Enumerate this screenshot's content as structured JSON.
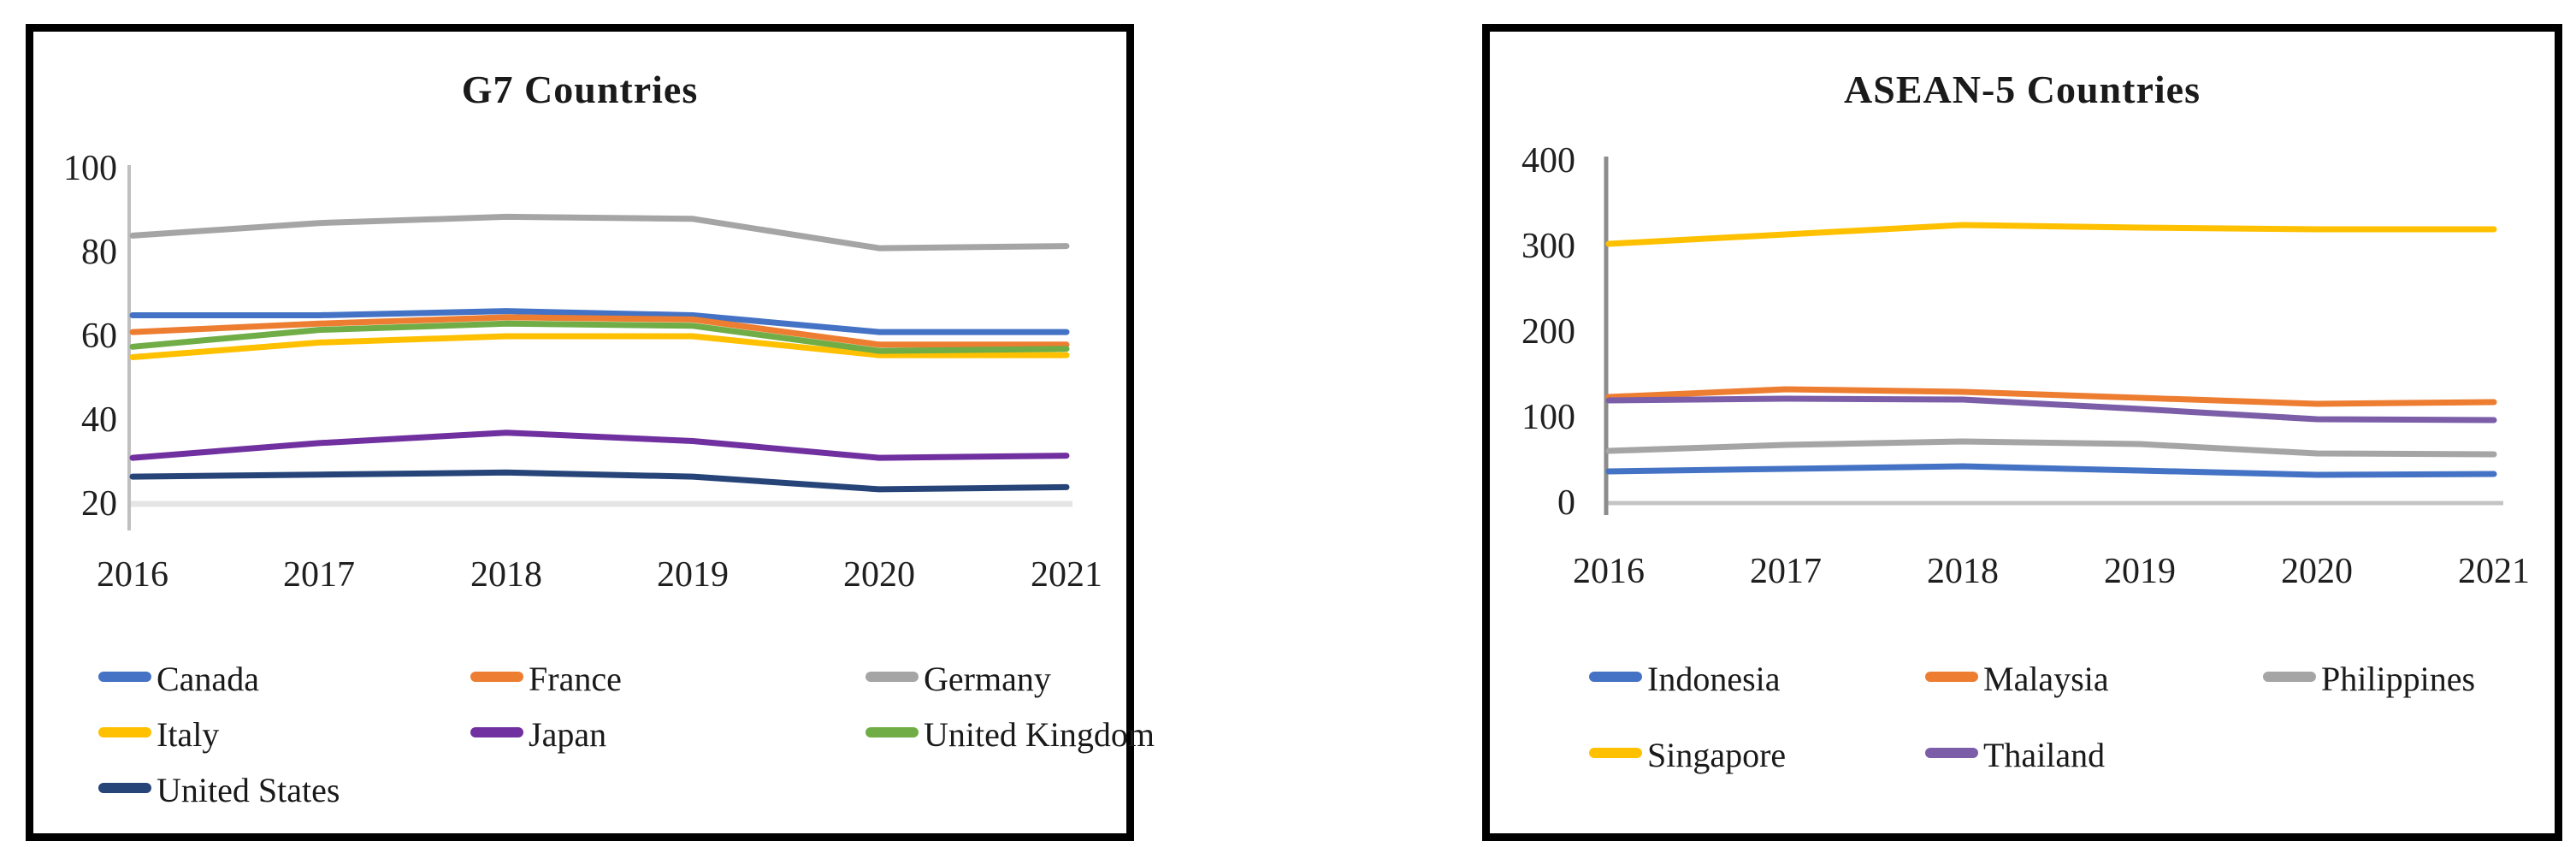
{
  "figure": {
    "background": "#ffffff",
    "panel_border_color": "#000000",
    "text_color": "#1a1a1a"
  },
  "chart_data": [
    {
      "type": "line",
      "title": "G7 Countries",
      "xlabel": "",
      "ylabel": "",
      "categories": [
        "2016",
        "2017",
        "2018",
        "2019",
        "2020",
        "2021"
      ],
      "y_axis": {
        "min": 20,
        "max": 100,
        "ticks": [
          100,
          80,
          60,
          40,
          20
        ]
      },
      "grid": false,
      "legend_position": "bottom",
      "series": [
        {
          "name": "Canada",
          "color": "#4472C4",
          "values": [
            65,
            65,
            66,
            65,
            61,
            61
          ]
        },
        {
          "name": "France",
          "color": "#ED7D31",
          "values": [
            61,
            63,
            64.5,
            64,
            58,
            58
          ]
        },
        {
          "name": "Germany",
          "color": "#A5A5A5",
          "values": [
            84,
            87,
            88.5,
            88,
            81,
            81.5
          ]
        },
        {
          "name": "Italy",
          "color": "#FFC000",
          "values": [
            55,
            58.5,
            60,
            60,
            55.5,
            55.5
          ]
        },
        {
          "name": "Japan",
          "color": "#7030A0",
          "values": [
            31,
            34.5,
            37,
            35,
            31,
            31.5
          ]
        },
        {
          "name": "United Kingdom",
          "color": "#70AD47",
          "values": [
            57.5,
            61.5,
            63,
            62.5,
            56.5,
            57
          ]
        },
        {
          "name": "United States",
          "color": "#264478",
          "values": [
            26.5,
            27,
            27.5,
            26.5,
            23.5,
            24
          ]
        }
      ]
    },
    {
      "type": "line",
      "title": "ASEAN-5 Countries",
      "xlabel": "",
      "ylabel": "",
      "categories": [
        "2016",
        "2017",
        "2018",
        "2019",
        "2020",
        "2021"
      ],
      "y_axis": {
        "min": 0,
        "max": 400,
        "ticks": [
          400,
          300,
          200,
          100,
          0
        ]
      },
      "grid": false,
      "legend_position": "bottom",
      "series": [
        {
          "name": "Indonesia",
          "color": "#4472C4",
          "values": [
            37,
            40,
            43,
            38,
            33,
            34
          ]
        },
        {
          "name": "Malaysia",
          "color": "#ED7D31",
          "values": [
            124,
            133,
            130,
            123,
            116,
            118
          ]
        },
        {
          "name": "Philippines",
          "color": "#A5A5A5",
          "values": [
            61,
            68,
            72,
            69,
            58,
            57
          ]
        },
        {
          "name": "Singapore",
          "color": "#FFC000",
          "values": [
            303,
            314,
            325,
            322,
            320,
            320
          ]
        },
        {
          "name": "Thailand",
          "color": "#7B5EA7",
          "values": [
            120,
            122,
            121,
            110,
            98,
            97
          ]
        }
      ]
    }
  ]
}
